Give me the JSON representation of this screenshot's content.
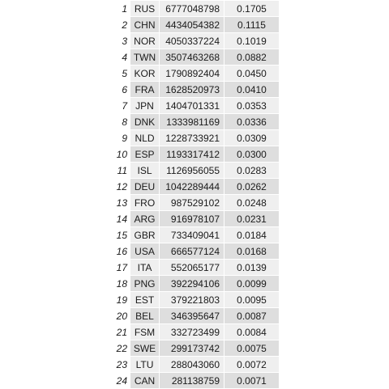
{
  "table": {
    "rows": [
      {
        "rank": "1",
        "code": "RUS",
        "value": "6777048798",
        "share": "0.1705"
      },
      {
        "rank": "2",
        "code": "CHN",
        "value": "4434054382",
        "share": "0.1115"
      },
      {
        "rank": "3",
        "code": "NOR",
        "value": "4050337224",
        "share": "0.1019"
      },
      {
        "rank": "4",
        "code": "TWN",
        "value": "3507463268",
        "share": "0.0882"
      },
      {
        "rank": "5",
        "code": "KOR",
        "value": "1790892404",
        "share": "0.0450"
      },
      {
        "rank": "6",
        "code": "FRA",
        "value": "1628520973",
        "share": "0.0410"
      },
      {
        "rank": "7",
        "code": "JPN",
        "value": "1404701331",
        "share": "0.0353"
      },
      {
        "rank": "8",
        "code": "DNK",
        "value": "1333981169",
        "share": "0.0336"
      },
      {
        "rank": "9",
        "code": "NLD",
        "value": "1228733921",
        "share": "0.0309"
      },
      {
        "rank": "10",
        "code": "ESP",
        "value": "1193317412",
        "share": "0.0300"
      },
      {
        "rank": "11",
        "code": "ISL",
        "value": "1126956055",
        "share": "0.0283"
      },
      {
        "rank": "12",
        "code": "DEU",
        "value": "1042289444",
        "share": "0.0262"
      },
      {
        "rank": "13",
        "code": "FRO",
        "value": "987529102",
        "share": "0.0248"
      },
      {
        "rank": "14",
        "code": "ARG",
        "value": "916978107",
        "share": "0.0231"
      },
      {
        "rank": "15",
        "code": "GBR",
        "value": "733409041",
        "share": "0.0184"
      },
      {
        "rank": "16",
        "code": "USA",
        "value": "666577124",
        "share": "0.0168"
      },
      {
        "rank": "17",
        "code": "ITA",
        "value": "552065177",
        "share": "0.0139"
      },
      {
        "rank": "18",
        "code": "PNG",
        "value": "392294106",
        "share": "0.0099"
      },
      {
        "rank": "19",
        "code": "EST",
        "value": "379221803",
        "share": "0.0095"
      },
      {
        "rank": "20",
        "code": "BEL",
        "value": "346395647",
        "share": "0.0087"
      },
      {
        "rank": "21",
        "code": "FSM",
        "value": "332723499",
        "share": "0.0084"
      },
      {
        "rank": "22",
        "code": "SWE",
        "value": "299173742",
        "share": "0.0075"
      },
      {
        "rank": "23",
        "code": "LTU",
        "value": "288043060",
        "share": "0.0072"
      },
      {
        "rank": "24",
        "code": "CAN",
        "value": "281138759",
        "share": "0.0071"
      }
    ]
  }
}
